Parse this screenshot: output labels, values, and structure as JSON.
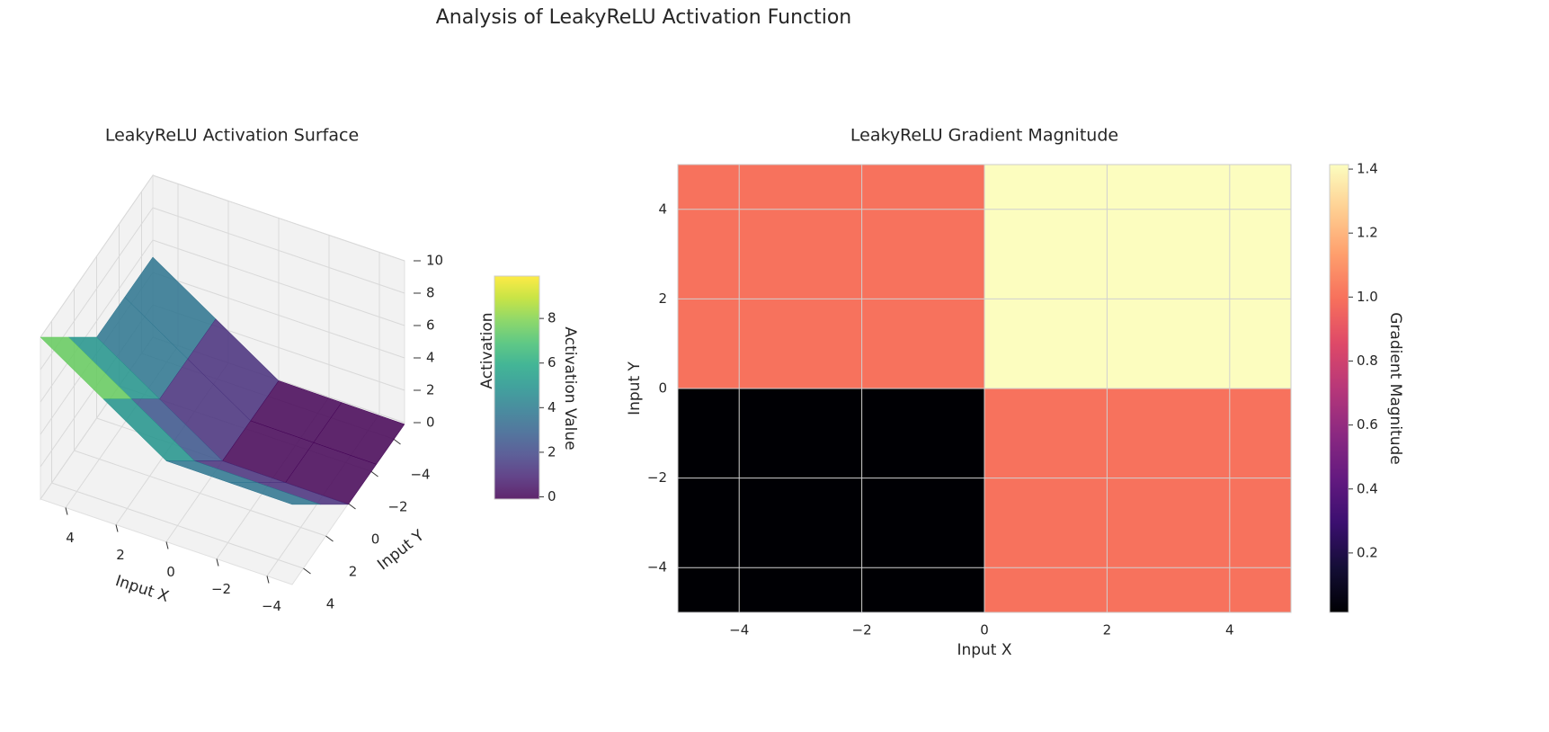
{
  "title": "Analysis of LeakyReLU Activation Function",
  "chart_data": [
    {
      "type": "surface3d",
      "title": "LeakyReLU Activation Surface",
      "xlabel": "Input X",
      "ylabel": "Input Y",
      "zlabel": "Activation",
      "x": [
        -5,
        -2.5,
        0,
        2.5,
        5
      ],
      "y": [
        -5,
        -2.5,
        0,
        2.5,
        5
      ],
      "z": [
        [
          -0.1,
          -0.075,
          -0.05,
          2.45,
          4.95
        ],
        [
          -0.075,
          -0.05,
          -0.025,
          2.475,
          4.975
        ],
        [
          -0.05,
          -0.025,
          0,
          2.5,
          5
        ],
        [
          2.45,
          2.475,
          2.5,
          5,
          7.5
        ],
        [
          4.95,
          4.975,
          5,
          7.5,
          10
        ]
      ],
      "xlim": [
        -5,
        5
      ],
      "ylim": [
        -5,
        5
      ],
      "zlim": [
        0,
        10
      ],
      "xticks": [
        {
          "value": -4,
          "label": "−4"
        },
        {
          "value": -2,
          "label": "−2"
        },
        0,
        2,
        4
      ],
      "yticks": [
        {
          "value": -4,
          "label": "−4"
        },
        {
          "value": -2,
          "label": "−2"
        },
        0,
        2,
        4
      ],
      "zticks": [
        0,
        2,
        4,
        6,
        8,
        10
      ],
      "colorbar": {
        "label": "Activation Value",
        "lim": [
          -0.1,
          9.9
        ],
        "ticks": [
          0,
          2,
          4,
          6,
          8
        ],
        "colormap": [
          "#440154",
          "#482475",
          "#414487",
          "#355f8d",
          "#2a788e",
          "#21918c",
          "#22a884",
          "#44bf70",
          "#7ad151",
          "#bddf26",
          "#fde725"
        ]
      }
    },
    {
      "type": "heatmap",
      "title": "LeakyReLU Gradient Magnitude",
      "xlabel": "Input X",
      "ylabel": "Input Y",
      "x_edges": [
        -5,
        0,
        5
      ],
      "y_edges": [
        -5,
        0,
        5
      ],
      "values": [
        [
          0.01414,
          1.00005
        ],
        [
          1.00005,
          1.41421
        ]
      ],
      "xlim": [
        -5,
        5
      ],
      "ylim": [
        -5,
        5
      ],
      "xticks": [
        {
          "value": -4,
          "label": "−4"
        },
        {
          "value": -2,
          "label": "−2"
        },
        0,
        2,
        4
      ],
      "yticks": [
        {
          "value": -4,
          "label": "−4"
        },
        {
          "value": -2,
          "label": "−2"
        },
        0,
        2,
        4
      ],
      "grid": true,
      "colorbar": {
        "label": "Gradient Magnitude",
        "lim": [
          0.01414,
          1.41421
        ],
        "ticks": [
          0.2,
          0.4,
          0.6,
          0.8,
          {
            "value": 1,
            "label": "1.0"
          },
          1.2,
          1.4
        ],
        "colormap": [
          "#000004",
          "#140e36",
          "#3b0f70",
          "#641a80",
          "#8c2981",
          "#b73779",
          "#de4968",
          "#f7705c",
          "#fe9f6d",
          "#fecf92",
          "#fcfdbf"
        ]
      }
    }
  ]
}
